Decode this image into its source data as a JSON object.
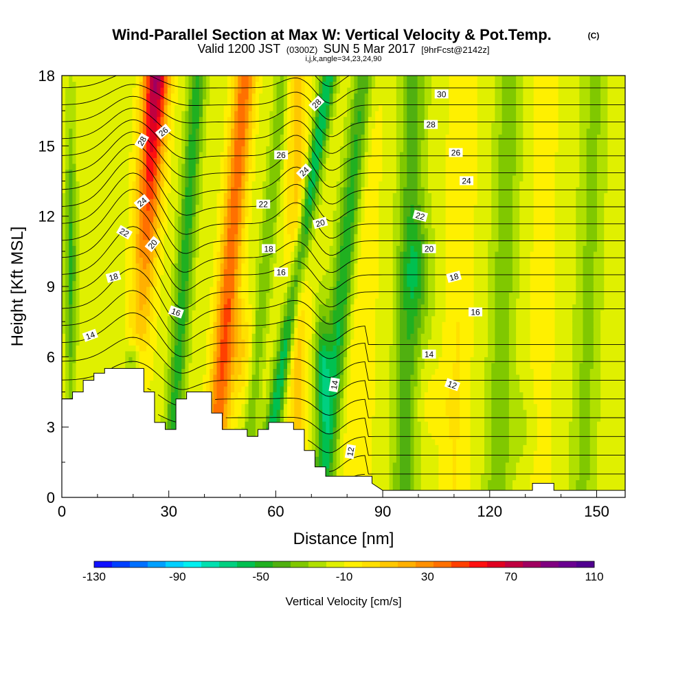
{
  "chart_data": {
    "type": "heatmap",
    "title": "Wind-Parallel Section at Max W: Vertical Velocity & Pot.Temp.",
    "title_mark": "(C)",
    "subtitle_pre": "Valid 1200 JST",
    "subtitle_utc": "(0300Z)",
    "subtitle_date": "SUN 5 Mar 2017",
    "subtitle_fcst": "[9hrFcst@2142z]",
    "subtitle2": "i,j,k,angle=34,23,24,90",
    "xlabel": "Distance [nm]",
    "ylabel": "Height [Kft MSL]",
    "xlim": [
      0,
      158
    ],
    "ylim": [
      0,
      18
    ],
    "x_ticks": [
      "0",
      "30",
      "60",
      "90",
      "120",
      "150"
    ],
    "y_ticks": [
      "0",
      "3",
      "6",
      "9",
      "12",
      "15",
      "18"
    ],
    "colorbar": {
      "label": "Vertical Velocity [cm/s]",
      "range": [
        -130,
        110
      ],
      "step": 10,
      "tick_labels": [
        "-130",
        "-90",
        "-50",
        "-10",
        "30",
        "70",
        "110"
      ],
      "colors": [
        "#1010ff",
        "#0040ff",
        "#0070ff",
        "#00a0ff",
        "#00d0ff",
        "#00f0f0",
        "#00e0b0",
        "#00d080",
        "#00c050",
        "#20b020",
        "#50b010",
        "#80c800",
        "#b0e000",
        "#e0f000",
        "#fff000",
        "#ffe000",
        "#ffc800",
        "#ffb000",
        "#ff9000",
        "#ff7000",
        "#ff4000",
        "#ff1010",
        "#e00020",
        "#c00040",
        "#a00060",
        "#800080",
        "#6a0090",
        "#50008f"
      ]
    },
    "theta_labels": [
      {
        "text": "14",
        "x": 8,
        "y": 6.9,
        "rot": -20
      },
      {
        "text": "16",
        "x": 32,
        "y": 7.9,
        "rot": 20
      },
      {
        "text": "18",
        "x": 14.5,
        "y": 9.4,
        "rot": -15
      },
      {
        "text": "22",
        "x": 17.5,
        "y": 11.3,
        "rot": 30
      },
      {
        "text": "20",
        "x": 25.5,
        "y": 10.8,
        "rot": -50
      },
      {
        "text": "24",
        "x": 22.5,
        "y": 12.6,
        "rot": -40
      },
      {
        "text": "28",
        "x": 22.5,
        "y": 15.2,
        "rot": -60
      },
      {
        "text": "26",
        "x": 28.5,
        "y": 15.6,
        "rot": -40
      },
      {
        "text": "18",
        "x": 58,
        "y": 10.6,
        "rot": 0
      },
      {
        "text": "16",
        "x": 61.5,
        "y": 9.6,
        "rot": 0
      },
      {
        "text": "22",
        "x": 56.5,
        "y": 12.5,
        "rot": 0
      },
      {
        "text": "20",
        "x": 72.5,
        "y": 11.7,
        "rot": -15
      },
      {
        "text": "26",
        "x": 61.5,
        "y": 14.6,
        "rot": 0
      },
      {
        "text": "24",
        "x": 68,
        "y": 13.9,
        "rot": -45
      },
      {
        "text": "28",
        "x": 71.5,
        "y": 16.8,
        "rot": -45
      },
      {
        "text": "30",
        "x": 106.5,
        "y": 17.2,
        "rot": 0
      },
      {
        "text": "28",
        "x": 103.5,
        "y": 15.9,
        "rot": 0
      },
      {
        "text": "26",
        "x": 110.5,
        "y": 14.7,
        "rot": 0
      },
      {
        "text": "24",
        "x": 113.5,
        "y": 13.5,
        "rot": 0
      },
      {
        "text": "22",
        "x": 100.5,
        "y": 12.0,
        "rot": 15
      },
      {
        "text": "20",
        "x": 103,
        "y": 10.6,
        "rot": 0
      },
      {
        "text": "18",
        "x": 110,
        "y": 9.4,
        "rot": -15
      },
      {
        "text": "16",
        "x": 116,
        "y": 7.9,
        "rot": 0
      },
      {
        "text": "14",
        "x": 103,
        "y": 6.1,
        "rot": 0
      },
      {
        "text": "12",
        "x": 109.5,
        "y": 4.8,
        "rot": 20
      },
      {
        "text": "14",
        "x": 76.5,
        "y": 4.8,
        "rot": -80
      },
      {
        "text": "12",
        "x": 81,
        "y": 1.95,
        "rot": -80
      }
    ]
  }
}
